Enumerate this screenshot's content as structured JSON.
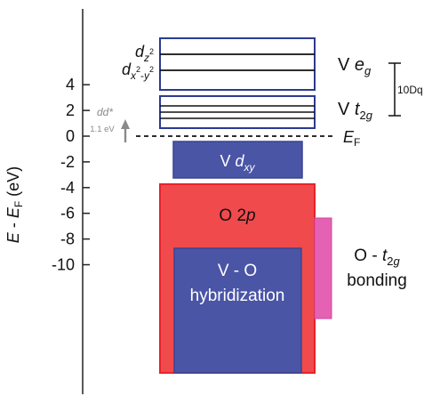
{
  "axis": {
    "ylabel": "E - E_F (eV)",
    "ticks": [
      4,
      2,
      0,
      -2,
      -4,
      -6,
      -8,
      -10
    ],
    "ylim": [
      -10,
      5
    ]
  },
  "levels": {
    "eg_label": "V e_g",
    "t2g_label": "V t_2g",
    "eg_orbitals": [
      "d_z^2",
      "d_x^2-y^2"
    ],
    "ef_label": "E_F",
    "gap_label": "10Dq",
    "dd_label": "dd*",
    "dd_energy": "1.1 eV"
  },
  "bands": {
    "vdxy_label": "V d_xy",
    "o2p_label": "O 2p",
    "vo_label_1": "V - O",
    "vo_label_2": "hybridization",
    "ot2g_label_1": "O - t_2g",
    "ot2g_label_2": "bonding"
  },
  "colors": {
    "o2p_fill": "#f04a4d",
    "o2p_stroke": "#e8222a",
    "v_fill": "#4a55a6",
    "v_stroke": "#3a4493",
    "pink_fill": "#e561b4",
    "frame_stroke": "#2b3a92",
    "arrow_gray": "#8a8a8a"
  }
}
